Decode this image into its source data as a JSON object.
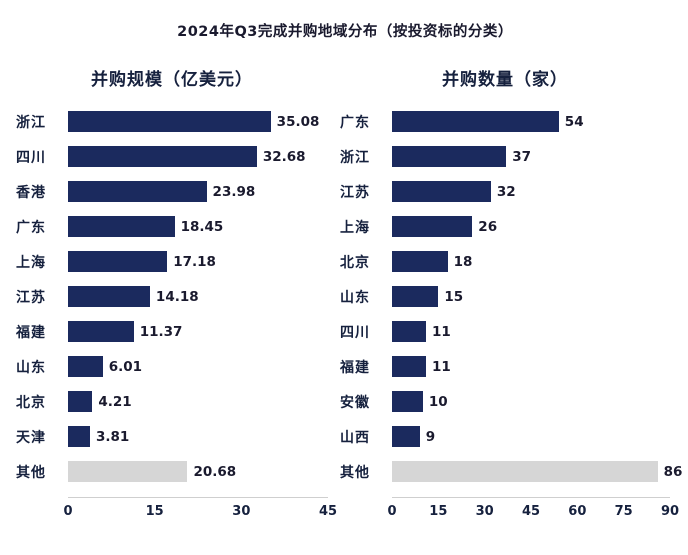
{
  "title": "2024年Q3完成并购地域分布（按投资标的分类）",
  "colors": {
    "bar": "#1b2a5e",
    "other_bar": "#d6d6d6",
    "text": "#16213e"
  },
  "chart_data": [
    {
      "type": "bar",
      "orientation": "horizontal",
      "title": "并购规模（亿美元）",
      "categories": [
        "浙江",
        "四川",
        "香港",
        "广东",
        "上海",
        "江苏",
        "福建",
        "山东",
        "北京",
        "天津",
        "其他"
      ],
      "values": [
        35.08,
        32.68,
        23.98,
        18.45,
        17.18,
        14.18,
        11.37,
        6.01,
        4.21,
        3.81,
        20.68
      ],
      "other_label": "其他",
      "xlim": [
        0,
        45
      ],
      "xticks": [
        0,
        15,
        30,
        45
      ],
      "grid": false,
      "legend": "none",
      "value_labels": true
    },
    {
      "type": "bar",
      "orientation": "horizontal",
      "title": "并购数量（家）",
      "categories": [
        "广东",
        "浙江",
        "江苏",
        "上海",
        "北京",
        "山东",
        "四川",
        "福建",
        "安徽",
        "山西",
        "其他"
      ],
      "values": [
        54,
        37,
        32,
        26,
        18,
        15,
        11,
        11,
        10,
        9,
        86
      ],
      "other_label": "其他",
      "xlim": [
        0,
        90
      ],
      "xticks": [
        0,
        15,
        30,
        45,
        60,
        75,
        90
      ],
      "grid": false,
      "legend": "none",
      "value_labels": true
    }
  ]
}
